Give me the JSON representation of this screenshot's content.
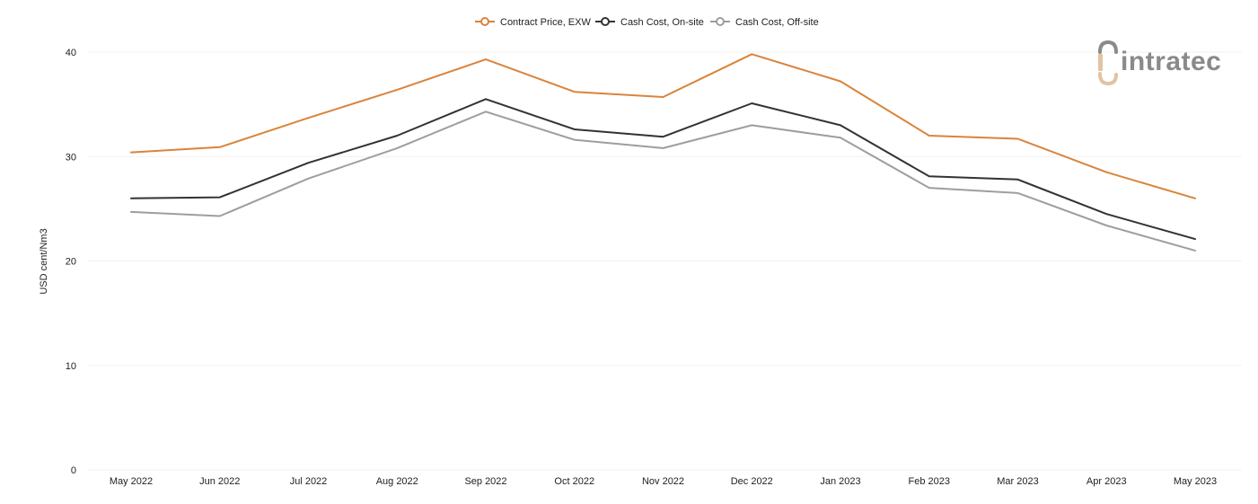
{
  "chart_data": {
    "type": "line",
    "title": "",
    "xlabel": "",
    "ylabel": "USD cent/Nm3",
    "ylim": [
      0,
      40
    ],
    "yticks": [
      0,
      10,
      20,
      30,
      40
    ],
    "grid": true,
    "legend_position": "top-center",
    "categories": [
      "May 2022",
      "Jun 2022",
      "Jul 2022",
      "Aug 2022",
      "Sep 2022",
      "Oct 2022",
      "Nov 2022",
      "Dec 2022",
      "Jan 2023",
      "Feb 2023",
      "Mar 2023",
      "Apr 2023",
      "May 2023"
    ],
    "series": [
      {
        "name": "Contract Price, EXW",
        "color": "#d9843b",
        "values": [
          30.4,
          30.9,
          33.7,
          36.4,
          39.3,
          36.2,
          35.7,
          39.8,
          37.2,
          32.0,
          31.7,
          28.5,
          26.0
        ]
      },
      {
        "name": "Cash Cost, On-site",
        "color": "#333333",
        "values": [
          26.0,
          26.1,
          29.4,
          32.0,
          35.5,
          32.6,
          31.9,
          35.1,
          33.0,
          28.1,
          27.8,
          24.5,
          22.1
        ]
      },
      {
        "name": "Cash Cost, Off-site",
        "color": "#9e9e9e",
        "values": [
          24.7,
          24.3,
          27.9,
          30.8,
          34.3,
          31.6,
          30.8,
          33.0,
          31.8,
          27.0,
          26.5,
          23.4,
          21.0
        ]
      }
    ]
  },
  "logo": {
    "text": "intratec",
    "letter_color": "#8a8a8a",
    "accent_color": "#e2c3a4"
  }
}
